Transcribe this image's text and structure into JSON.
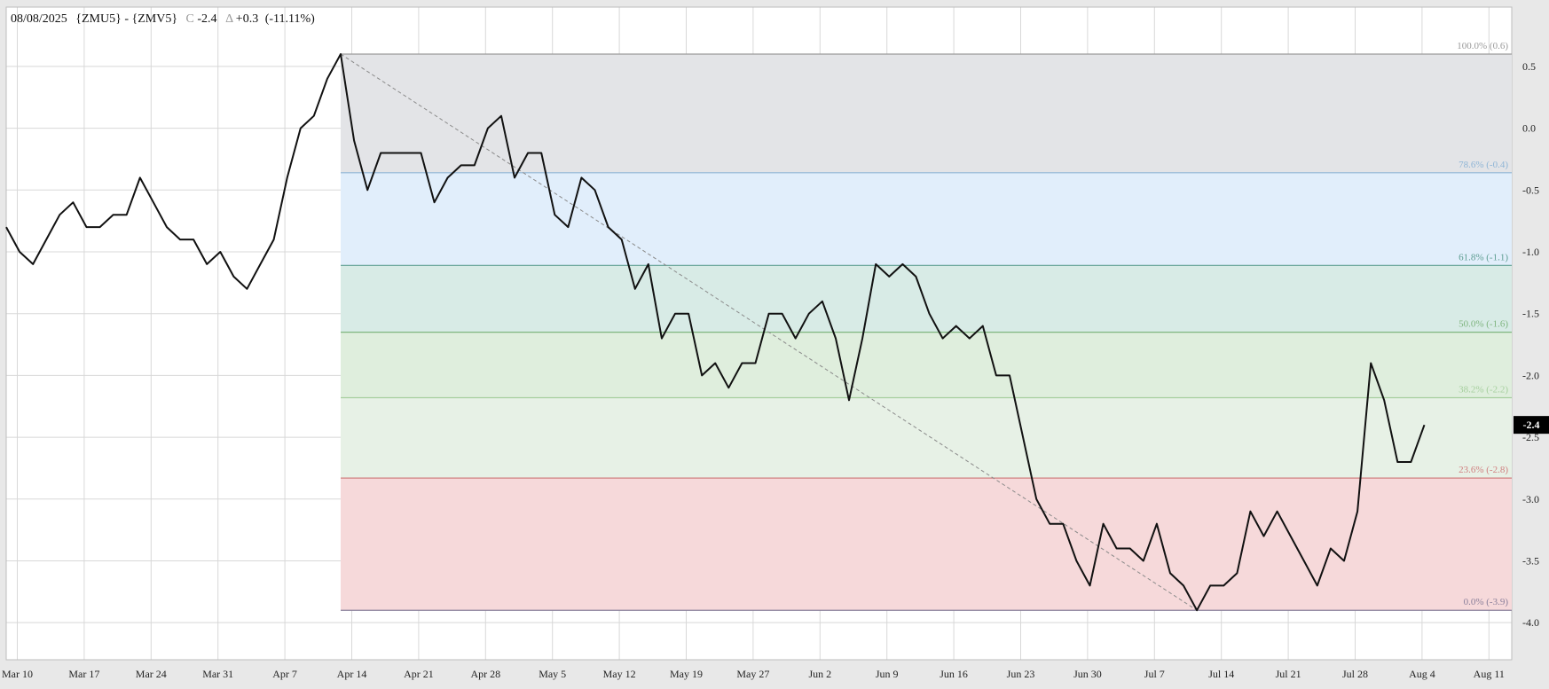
{
  "header": {
    "date": "08/08/2025",
    "symbol": "{ZMU5} - {ZMV5}",
    "close_label": "C",
    "close_value": "-2.4",
    "change_label": "Δ",
    "change_value": "+0.3",
    "change_pct": "(-11.11%)"
  },
  "last_price_badge": "-2.4",
  "colors": {
    "line": "#111111",
    "grid": "#d8d8d8",
    "fib_100_786": "#e3e4e7",
    "fib_786_618": "#e1eefb",
    "fib_618_500": "#d8ebe6",
    "fib_500_382": "#dfeedd",
    "fib_382_236": "#e7f1e6",
    "fib_236_0": "#f6d9da"
  },
  "chart_data": {
    "type": "line",
    "x_tick_labels": [
      "Mar 10",
      "Mar 17",
      "Mar 24",
      "Mar 31",
      "Apr 7",
      "Apr 14",
      "Apr 21",
      "Apr 28",
      "May 5",
      "May 12",
      "May 19",
      "May 27",
      "Jun 2",
      "Jun 9",
      "Jun 16",
      "Jun 23",
      "Jun 30",
      "Jul 7",
      "Jul 14",
      "Jul 21",
      "Jul 28",
      "Aug 4",
      "Aug 11"
    ],
    "y_tick_labels": [
      "0.5",
      "0.0",
      "-0.5",
      "-1.0",
      "-1.5",
      "-2.0",
      "-2.5",
      "-3.0",
      "-3.5",
      "-4.0"
    ],
    "y_ticks": [
      0.5,
      0.0,
      -0.5,
      -1.0,
      -1.5,
      -2.0,
      -2.5,
      -3.0,
      -3.5,
      -4.0
    ],
    "ylim": [
      -4.3,
      0.98
    ],
    "grid": true,
    "series": [
      {
        "values": [
          -0.8,
          -1.0,
          -1.1,
          -0.9,
          -0.7,
          -0.6,
          -0.8,
          -0.8,
          -0.7,
          -0.7,
          -0.4,
          -0.6,
          -0.8,
          -0.9,
          -0.9,
          -1.1,
          -1.0,
          -1.2,
          -1.3,
          -1.1,
          -0.9,
          -0.4,
          0.0,
          0.1,
          0.4,
          0.6,
          -0.1,
          -0.5,
          -0.2,
          -0.2,
          -0.2,
          -0.2,
          -0.6,
          -0.4,
          -0.3,
          -0.3,
          0.0,
          0.1,
          -0.4,
          -0.2,
          -0.2,
          -0.7,
          -0.8,
          -0.4,
          -0.5,
          -0.8,
          -0.9,
          -1.3,
          -1.1,
          -1.7,
          -1.5,
          -1.5,
          -2.0,
          -1.9,
          -2.1,
          -1.9,
          -1.9,
          -1.5,
          -1.5,
          -1.7,
          -1.5,
          -1.4,
          -1.7,
          -2.2,
          -1.7,
          -1.1,
          -1.2,
          -1.1,
          -1.2,
          -1.5,
          -1.7,
          -1.6,
          -1.7,
          -1.6,
          -2.0,
          -2.0,
          -2.5,
          -3.0,
          -3.2,
          -3.2,
          -3.5,
          -3.7,
          -3.2,
          -3.4,
          -3.4,
          -3.5,
          -3.2,
          -3.6,
          -3.7,
          -3.9,
          -3.7,
          -3.7,
          -3.6,
          -3.1,
          -3.3,
          -3.1,
          -3.3,
          -3.5,
          -3.7,
          -3.4,
          -3.5,
          -3.1,
          -1.9,
          -2.2,
          -2.7,
          -2.7,
          -2.4
        ]
      }
    ],
    "fibonacci": {
      "levels": [
        {
          "label": "100.0% (0.6)",
          "value": 0.6,
          "color": "#9a9a9a"
        },
        {
          "label": "78.6% (-0.4)",
          "value": -0.36,
          "color": "#8fb5d6"
        },
        {
          "label": "61.8% (-1.1)",
          "value": -1.11,
          "color": "#5e9e92"
        },
        {
          "label": "50.0% (-1.6)",
          "value": -1.65,
          "color": "#7fb57f"
        },
        {
          "label": "38.2% (-2.2)",
          "value": -2.18,
          "color": "#a6cf9e"
        },
        {
          "label": "23.6% (-2.8)",
          "value": -2.83,
          "color": "#d08080"
        },
        {
          "label": "0.0% (-3.9)",
          "value": -3.9,
          "color": "#8a7f9a"
        }
      ],
      "trend_from": {
        "index": 25,
        "value": 0.6
      },
      "trend_to": {
        "index": 89,
        "value": -3.9
      }
    }
  }
}
